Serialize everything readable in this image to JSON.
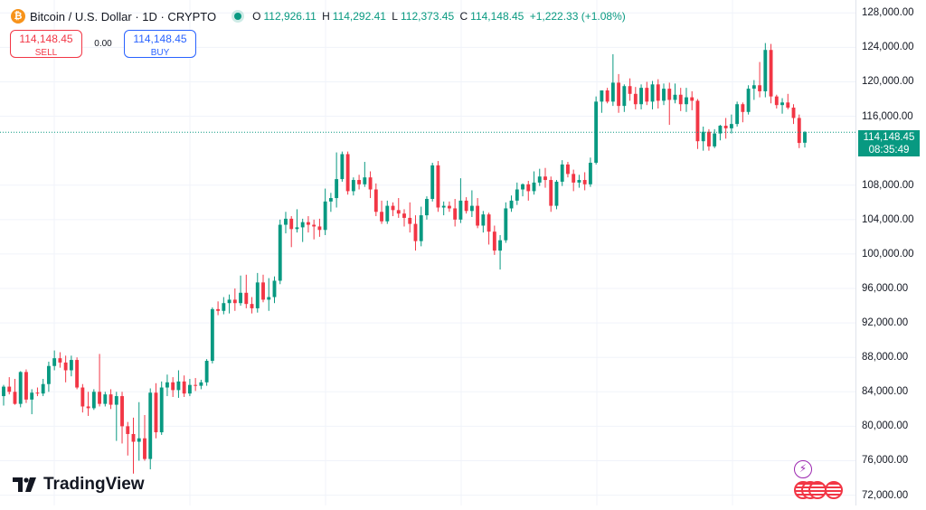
{
  "header": {
    "coin_glyph": "₿",
    "title": "Bitcoin / U.S. Dollar · 1D · CRYPTO",
    "ohlc": {
      "o_key": "O",
      "o_val": "112,926.11",
      "h_key": "H",
      "h_val": "114,292.41",
      "l_key": "L",
      "l_val": "112,373.45",
      "c_key": "C",
      "c_val": "114,148.45",
      "change": "+1,222.33 (+1.08%)"
    }
  },
  "trade": {
    "sell_price": "114,148.45",
    "sell_label": "SELL",
    "spread": "0.00",
    "buy_price": "114,148.45",
    "buy_label": "BUY"
  },
  "price_tag": {
    "price": "114,148.45",
    "countdown": "08:35:49"
  },
  "brand": {
    "name": "TradingView",
    "icon": "tradingview-logo-icon"
  },
  "events": [
    {
      "icon": "lightning-bolt-icon",
      "color": "#9c27b0"
    },
    {
      "icon": "us-flag-event-icon",
      "color": "#f23645"
    }
  ],
  "colors": {
    "up": "#089981",
    "down": "#f23645",
    "grid": "#f0f3fa"
  },
  "chart_data": {
    "type": "candlestick",
    "y_ticks": [
      "128,000.00",
      "124,000.00",
      "120,000.00",
      "116,000.00",
      "108,000.00",
      "104,000.00",
      "100,000.00",
      "96,000.00",
      "92,000.00",
      "88,000.00",
      "84,000.00",
      "80,000.00",
      "76,000.00",
      "72,000.00"
    ],
    "y_tick_values": [
      128000,
      124000,
      120000,
      116000,
      108000,
      104000,
      100000,
      96000,
      92000,
      88000,
      84000,
      80000,
      76000,
      72000
    ],
    "ylim": [
      70800,
      129500
    ],
    "last_price": 114148.45,
    "grid": true,
    "candles": [
      [
        83500,
        84800,
        82400,
        84600
      ],
      [
        84600,
        85700,
        83700,
        84000
      ],
      [
        84000,
        85500,
        82500,
        82600
      ],
      [
        82600,
        86400,
        82200,
        86300
      ],
      [
        86300,
        86600,
        82700,
        83100
      ],
      [
        83100,
        84300,
        81400,
        83900
      ],
      [
        83900,
        84500,
        83500,
        83800
      ],
      [
        83800,
        85500,
        83500,
        84900
      ],
      [
        84900,
        87500,
        84000,
        87000
      ],
      [
        87000,
        88800,
        86500,
        87900
      ],
      [
        87900,
        88600,
        86800,
        87400
      ],
      [
        87400,
        88200,
        85100,
        86500
      ],
      [
        86500,
        88200,
        85800,
        87700
      ],
      [
        87700,
        88000,
        84300,
        84500
      ],
      [
        84500,
        84900,
        81600,
        82300
      ],
      [
        82300,
        84000,
        81200,
        82100
      ],
      [
        82100,
        84300,
        81900,
        84000
      ],
      [
        84000,
        88400,
        82300,
        82600
      ],
      [
        82600,
        84000,
        82300,
        83700
      ],
      [
        83700,
        84300,
        82000,
        82500
      ],
      [
        82500,
        84000,
        78300,
        83500
      ],
      [
        83500,
        84000,
        78000,
        80000
      ],
      [
        80000,
        80500,
        76600,
        79100
      ],
      [
        79100,
        81000,
        74500,
        78200
      ],
      [
        78200,
        82800,
        76000,
        78600
      ],
      [
        78600,
        81300,
        76000,
        76200
      ],
      [
        76200,
        84400,
        75000,
        83900
      ],
      [
        83900,
        85000,
        78600,
        79300
      ],
      [
        79300,
        85200,
        79000,
        84500
      ],
      [
        84500,
        86000,
        83500,
        85100
      ],
      [
        85100,
        85700,
        83400,
        84200
      ],
      [
        84200,
        86500,
        83300,
        85200
      ],
      [
        85200,
        85900,
        83400,
        83800
      ],
      [
        83800,
        85500,
        83500,
        84800
      ],
      [
        84800,
        85600,
        84100,
        84700
      ],
      [
        84700,
        85400,
        84300,
        85100
      ],
      [
        85100,
        87800,
        84700,
        87600
      ],
      [
        87600,
        93800,
        87300,
        93600
      ],
      [
        93600,
        94500,
        92900,
        93400
      ],
      [
        93400,
        95000,
        93000,
        94300
      ],
      [
        94300,
        95300,
        93100,
        94700
      ],
      [
        94700,
        96000,
        93400,
        94300
      ],
      [
        94300,
        97500,
        94000,
        95500
      ],
      [
        95500,
        97600,
        93700,
        94200
      ],
      [
        94200,
        95000,
        93100,
        93700
      ],
      [
        93700,
        97800,
        93200,
        96700
      ],
      [
        96700,
        97600,
        94400,
        94700
      ],
      [
        94700,
        97200,
        93400,
        95000
      ],
      [
        95000,
        97400,
        94300,
        96900
      ],
      [
        96900,
        104000,
        96500,
        103400
      ],
      [
        103400,
        104900,
        102400,
        104100
      ],
      [
        104100,
        104400,
        100800,
        102900
      ],
      [
        102900,
        105200,
        102500,
        103100
      ],
      [
        103100,
        104100,
        101400,
        103700
      ],
      [
        103700,
        104400,
        102500,
        103400
      ],
      [
        103400,
        104000,
        101700,
        103200
      ],
      [
        103200,
        104100,
        102000,
        102800
      ],
      [
        102800,
        107600,
        102200,
        106100
      ],
      [
        106100,
        107100,
        104900,
        106500
      ],
      [
        106500,
        111800,
        105400,
        108700
      ],
      [
        108700,
        111900,
        108400,
        111600
      ],
      [
        111600,
        111900,
        106900,
        107300
      ],
      [
        107300,
        108900,
        106800,
        108600
      ],
      [
        108600,
        109200,
        107500,
        108100
      ],
      [
        108100,
        110700,
        107800,
        108900
      ],
      [
        108900,
        109600,
        106500,
        107500
      ],
      [
        107500,
        108200,
        104400,
        104900
      ],
      [
        104900,
        106200,
        103500,
        103800
      ],
      [
        103800,
        106200,
        103500,
        105600
      ],
      [
        105600,
        106000,
        104400,
        105100
      ],
      [
        105100,
        106500,
        104200,
        104700
      ],
      [
        104700,
        105200,
        103200,
        104200
      ],
      [
        104200,
        106000,
        102500,
        103500
      ],
      [
        103500,
        104500,
        100400,
        101500
      ],
      [
        101500,
        105500,
        100900,
        104500
      ],
      [
        104500,
        106700,
        104000,
        106400
      ],
      [
        106400,
        110600,
        106100,
        110300
      ],
      [
        110300,
        110800,
        104900,
        105400
      ],
      [
        105400,
        106100,
        104500,
        105600
      ],
      [
        105600,
        106100,
        104900,
        105300
      ],
      [
        105300,
        106400,
        103200,
        104000
      ],
      [
        104000,
        108800,
        103600,
        106200
      ],
      [
        106200,
        106600,
        104700,
        105000
      ],
      [
        105000,
        107400,
        104300,
        105600
      ],
      [
        105600,
        106500,
        103000,
        103300
      ],
      [
        103300,
        105000,
        102500,
        104600
      ],
      [
        104600,
        104800,
        101100,
        102600
      ],
      [
        102600,
        103300,
        99900,
        100400
      ],
      [
        100400,
        102200,
        98200,
        101600
      ],
      [
        101600,
        106000,
        101300,
        105300
      ],
      [
        105300,
        106800,
        104900,
        106200
      ],
      [
        106200,
        108300,
        105700,
        107500
      ],
      [
        107500,
        108200,
        106700,
        108100
      ],
      [
        108100,
        108500,
        106200,
        107300
      ],
      [
        107300,
        109600,
        106900,
        108300
      ],
      [
        108300,
        109900,
        107900,
        109000
      ],
      [
        109000,
        110000,
        107700,
        108600
      ],
      [
        108600,
        109000,
        104900,
        105600
      ],
      [
        105600,
        108600,
        105200,
        108400
      ],
      [
        108400,
        110900,
        107900,
        110400
      ],
      [
        110400,
        110700,
        108900,
        109300
      ],
      [
        109300,
        109800,
        107300,
        108300
      ],
      [
        108300,
        109200,
        107700,
        108600
      ],
      [
        108600,
        109500,
        107400,
        108100
      ],
      [
        108100,
        111200,
        107800,
        110600
      ],
      [
        110600,
        118300,
        110400,
        117700
      ],
      [
        117700,
        118900,
        116400,
        119000
      ],
      [
        119000,
        119300,
        117500,
        117700
      ],
      [
        117700,
        123200,
        117200,
        119900
      ],
      [
        119900,
        120900,
        116400,
        117200
      ],
      [
        117200,
        119700,
        116500,
        119500
      ],
      [
        119500,
        120400,
        117800,
        118600
      ],
      [
        118600,
        119400,
        116800,
        117400
      ],
      [
        117400,
        119700,
        116800,
        119300
      ],
      [
        119300,
        120000,
        117300,
        117700
      ],
      [
        117700,
        120100,
        116800,
        119700
      ],
      [
        119700,
        120300,
        116900,
        117800
      ],
      [
        117800,
        119800,
        117300,
        119200
      ],
      [
        119200,
        119900,
        115000,
        117900
      ],
      [
        117900,
        119800,
        117500,
        118500
      ],
      [
        118500,
        119300,
        116600,
        117400
      ],
      [
        117400,
        119300,
        116500,
        118200
      ],
      [
        118200,
        118900,
        116700,
        117800
      ],
      [
        117800,
        118000,
        112200,
        113100
      ],
      [
        113100,
        114800,
        112000,
        114200
      ],
      [
        114200,
        114500,
        112000,
        112500
      ],
      [
        112500,
        114500,
        112300,
        114000
      ],
      [
        114000,
        115000,
        113200,
        114900
      ],
      [
        114900,
        115800,
        113400,
        114600
      ],
      [
        114600,
        116200,
        114000,
        115100
      ],
      [
        115100,
        117700,
        114800,
        117400
      ],
      [
        117400,
        117600,
        115300,
        116500
      ],
      [
        116500,
        119600,
        116200,
        119200
      ],
      [
        119200,
        120200,
        117900,
        119600
      ],
      [
        119600,
        122300,
        118200,
        118900
      ],
      [
        118900,
        124500,
        118200,
        123700
      ],
      [
        123700,
        124400,
        117500,
        118300
      ],
      [
        118300,
        118500,
        116900,
        117300
      ],
      [
        117300,
        118100,
        116300,
        117600
      ],
      [
        117600,
        118600,
        116800,
        117000
      ],
      [
        117000,
        117400,
        115100,
        115800
      ],
      [
        115800,
        116200,
        112300,
        112900
      ],
      [
        112926.11,
        114292.41,
        112373.45,
        114148.45
      ]
    ]
  }
}
